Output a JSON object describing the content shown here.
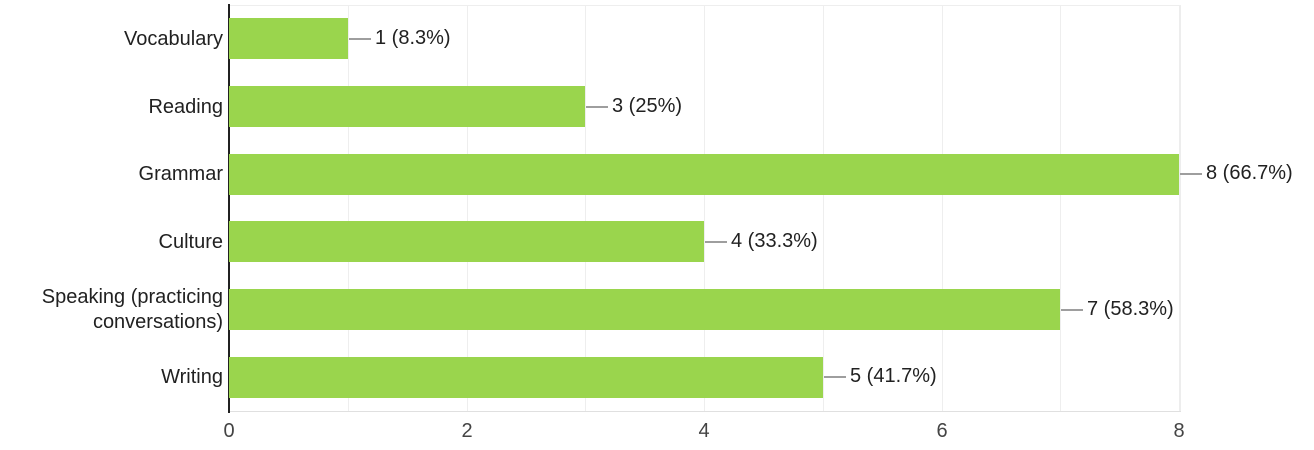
{
  "chart_data": {
    "type": "bar",
    "orientation": "horizontal",
    "title": "",
    "categories": [
      "Vocabulary",
      "Reading",
      "Grammar",
      "Culture",
      "Speaking (practicing conversations)",
      "Writing"
    ],
    "values": [
      1,
      3,
      8,
      4,
      7,
      5
    ],
    "value_labels": [
      "1 (8.3%)",
      "3 (25%)",
      "8 (66.7%)",
      "4 (33.3%)",
      "7 (58.3%)",
      "5 (41.7%)"
    ],
    "x_ticks": [
      "0",
      "2",
      "4",
      "6",
      "8"
    ],
    "x_tick_values": [
      0,
      2,
      4,
      6,
      8
    ],
    "xlim": [
      0,
      8
    ],
    "grid": true,
    "gridline_step": 1,
    "legend": "none",
    "bar_color": "#9ad54d"
  },
  "colors": {
    "background": "#ffffff",
    "bar": "#9ad54d",
    "category_axis": "#212121",
    "gridline": "#eeeeee",
    "baseline": "#e0e0e0",
    "connector": "#9e9e9e",
    "label_text": "#212121",
    "tick_text": "#444444"
  }
}
